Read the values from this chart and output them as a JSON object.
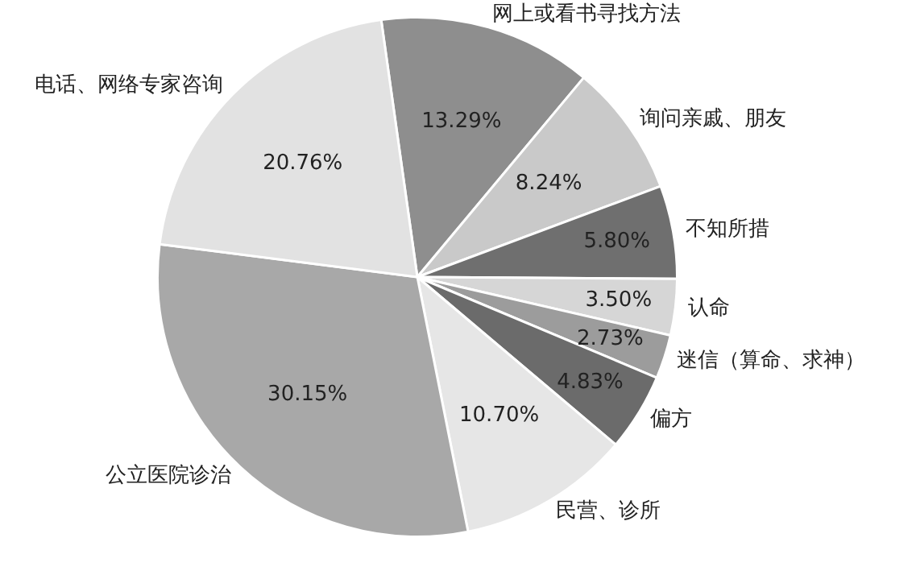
{
  "chart_data": {
    "type": "pie",
    "categories": [
      "网上或看书寻找方法",
      "询问亲戚、朋友",
      "不知所措",
      "认命",
      "迷信（算命、求神）",
      "偏方",
      "民营、诊所",
      "公立医院诊治",
      "电话、网络专家咨询"
    ],
    "values": [
      13.29,
      8.24,
      5.8,
      3.5,
      2.73,
      4.83,
      10.7,
      30.15,
      20.76
    ],
    "value_labels": [
      "13.29%",
      "8.24%",
      "5.80%",
      "3.50%",
      "2.73%",
      "4.83%",
      "10.70%",
      "30.15%",
      "20.76%"
    ],
    "colors": [
      "#8e8e8e",
      "#c9c9c9",
      "#6f6f6f",
      "#d6d6d6",
      "#9c9c9c",
      "#6b6b6b",
      "#e6e6e6",
      "#a8a8a8",
      "#e2e2e2"
    ],
    "legend": false
  }
}
